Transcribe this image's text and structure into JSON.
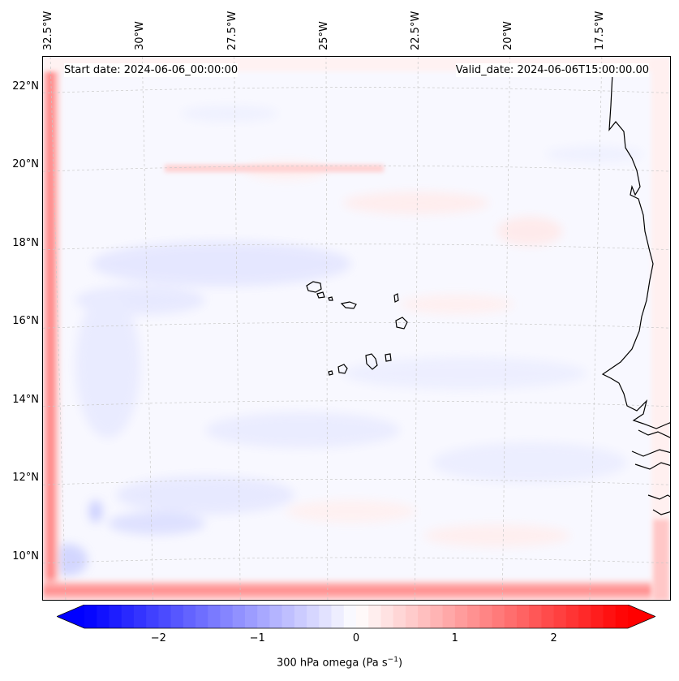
{
  "map": {
    "start_label": "Start date: 2024-06-06_00:00:00",
    "valid_label": "Valid_date: 2024-06-06T15:00:00.00",
    "lat_labels": [
      "22°N",
      "20°N",
      "18°N",
      "16°N",
      "14°N",
      "12°N",
      "10°N"
    ],
    "lon_labels": [
      "32.5°W",
      "30°W",
      "27.5°W",
      "25°W",
      "22.5°W",
      "20°W",
      "17.5°W"
    ],
    "lat_values": [
      22,
      20,
      18,
      16,
      14,
      12,
      10
    ],
    "lon_values": [
      -32.5,
      -30,
      -27.5,
      -25,
      -22.5,
      -20,
      -17.5
    ],
    "extent": {
      "lon_min": -32.7,
      "lon_max": -15.6,
      "lat_min": 8.9,
      "lat_max": 22.8
    },
    "field": "300 hPa omega",
    "gridlines": true
  },
  "colorbar": {
    "label_main": "300 hPa omega (Pa s",
    "label_exp": "−1",
    "label_close": ")",
    "ticks": [
      "−2",
      "−1",
      "0",
      "1",
      "2"
    ],
    "tick_values": [
      -2,
      -1,
      0,
      1,
      2
    ],
    "range": [
      -2.75,
      2.75
    ],
    "extend": "both",
    "color_low": "#0000ff",
    "color_mid": "#ffffff",
    "color_high": "#ff0000"
  }
}
